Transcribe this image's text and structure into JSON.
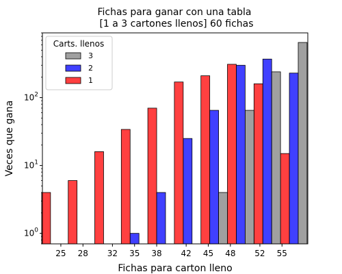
{
  "chart_data": {
    "type": "bar",
    "title_line1": "Fichas para ganar con una tabla",
    "title_line2": "[1 a 3 cartones llenos] 60 fichas",
    "xlabel": "Fichas para carton lleno",
    "ylabel": "Veces que gana",
    "y_scale": "log",
    "ylim": [
      0.7,
      900
    ],
    "xlim": [
      22.5,
      58.5
    ],
    "x_ticks": [
      25,
      28,
      32,
      35,
      38,
      42,
      45,
      48,
      52,
      55
    ],
    "y_ticks": [
      {
        "value": 1,
        "base": "10",
        "exp": "0"
      },
      {
        "value": 10,
        "base": "10",
        "exp": "1"
      },
      {
        "value": 100,
        "base": "10",
        "exp": "2"
      }
    ],
    "bin_width": 3.6,
    "legend": {
      "title": "Carts. llenos",
      "placement": "top-left",
      "entries": [
        {
          "label": "3",
          "color": "#808080"
        },
        {
          "label": "2",
          "color": "#0000ff"
        },
        {
          "label": "1",
          "color": "#ff0000"
        }
      ]
    },
    "series": [
      {
        "name": "1",
        "color": "#ff0000",
        "x": [
          24.2,
          27.8,
          31.4,
          35.0,
          38.6,
          42.2,
          45.8,
          49.4,
          53.0,
          56.6
        ],
        "values": [
          4,
          6,
          16,
          34,
          70,
          170,
          210,
          310,
          160,
          15
        ]
      },
      {
        "name": "2",
        "color": "#0000ff",
        "x": [
          24.2,
          27.8,
          31.4,
          35.0,
          38.6,
          42.2,
          45.8,
          49.4,
          53.0,
          56.6
        ],
        "values": [
          0,
          0,
          0,
          1,
          4,
          25,
          65,
          300,
          370,
          230
        ]
      },
      {
        "name": "3",
        "color": "#808080",
        "x": [
          24.2,
          27.8,
          31.4,
          35.0,
          38.6,
          42.2,
          45.8,
          49.4,
          53.0,
          56.6
        ],
        "values": [
          0,
          0,
          0,
          0,
          0,
          0,
          4,
          65,
          240,
          650
        ]
      }
    ]
  }
}
